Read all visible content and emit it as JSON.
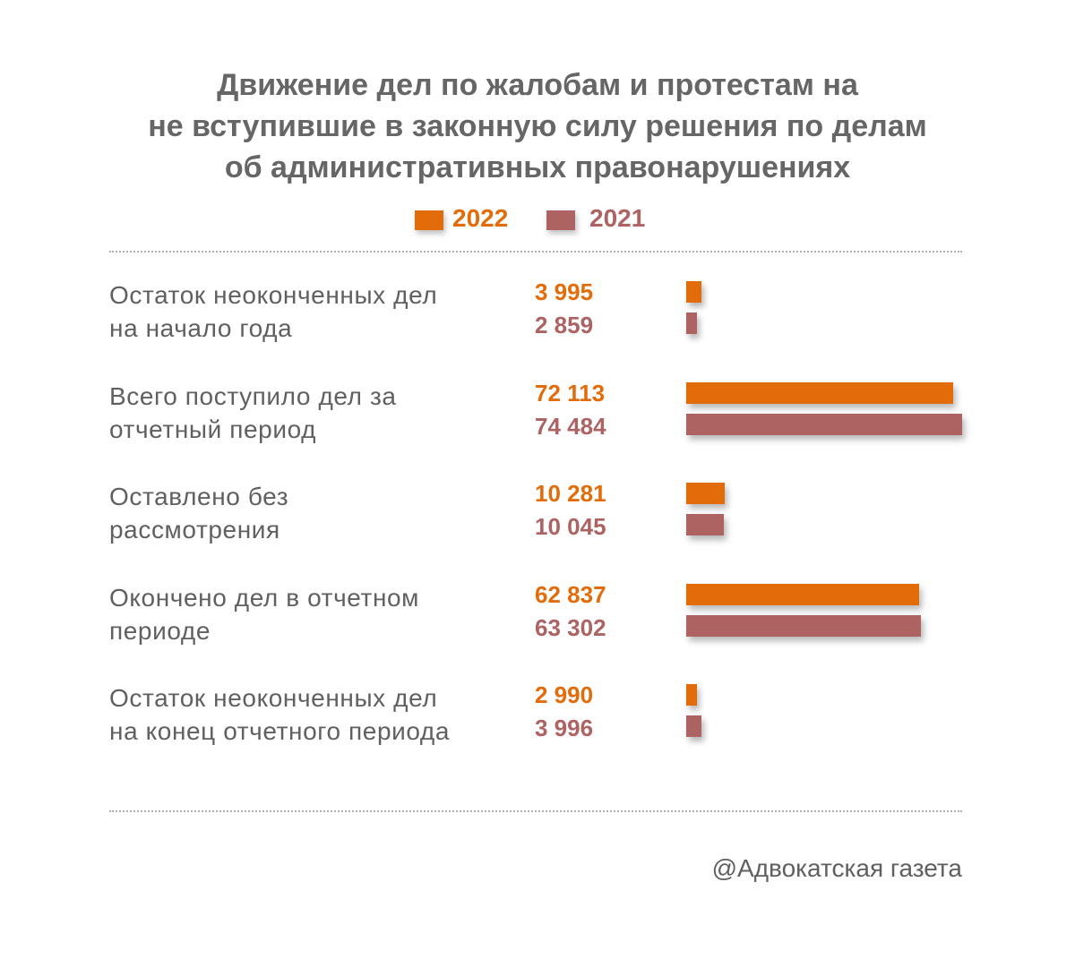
{
  "chart_data": {
    "type": "bar",
    "orientation": "horizontal",
    "title_lines": [
      "Движение дел по жалобам и протестам на",
      "не вступившие в законную силу решения по делам",
      "об административных правонарушениях"
    ],
    "legend": [
      {
        "name": "2022",
        "color": "#e36c0a"
      },
      {
        "name": "2021",
        "color": "#ae6363"
      }
    ],
    "legend_position": "top",
    "categories": [
      [
        "Остаток неоконченных дел",
        "на начало года"
      ],
      [
        "Всего поступило дел за",
        "отчетный период"
      ],
      [
        "Оставлено без",
        "рассмотрения"
      ],
      [
        "Окончено дел в отчетном",
        "периоде"
      ],
      [
        "Остаток неоконченных дел",
        "на конец отчетного периода"
      ]
    ],
    "series": [
      {
        "name": "2022",
        "color": "#e36c0a",
        "values": [
          3995,
          72113,
          10281,
          62837,
          2990
        ],
        "labels": [
          "3 995",
          "72 113",
          "10 281",
          "62 837",
          "2 990"
        ]
      },
      {
        "name": "2021",
        "color": "#ae6363",
        "values": [
          2859,
          74484,
          10045,
          63302,
          3996
        ],
        "labels": [
          "2 859",
          "74 484",
          "10 045",
          "63 302",
          "3 996"
        ]
      }
    ],
    "grid": false
  },
  "credit": "@Адвокатская газета"
}
